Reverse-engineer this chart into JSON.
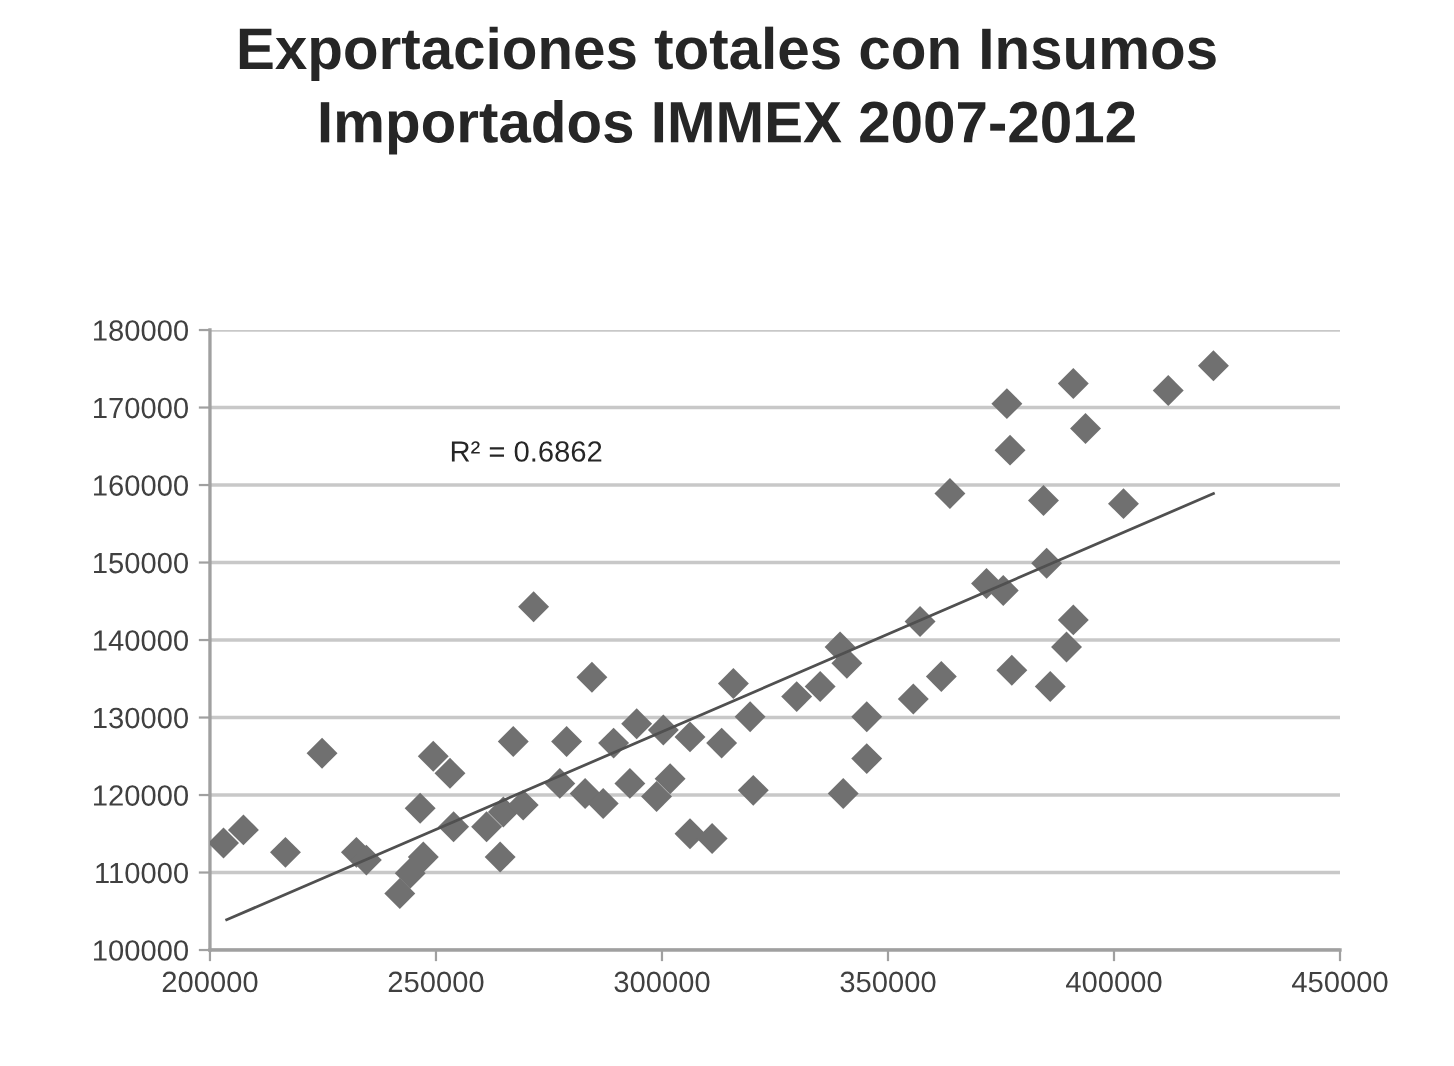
{
  "chart_data": {
    "type": "scatter",
    "title": "Exportaciones totales con Insumos\nImportados IMMEX 2007-2012",
    "annotations": [
      "R² = 0.6862"
    ],
    "marker": "diamond",
    "grid": "y",
    "legend": false,
    "xlim": [
      200000,
      450000
    ],
    "xticks": [
      200000,
      250000,
      300000,
      350000,
      400000,
      450000
    ],
    "ylim": [
      100000,
      180000
    ],
    "yticks": [
      100000,
      110000,
      120000,
      130000,
      140000,
      150000,
      160000,
      170000,
      180000
    ],
    "series": [
      {
        "color": "#707070",
        "x": [
          203000,
          207400,
          216700,
          224800,
          232400,
          234600,
          242000,
          244300,
          247200,
          246500,
          249400,
          253100,
          253900,
          261200,
          264200,
          264900,
          269300,
          267100,
          271600,
          278900,
          277400,
          283000,
          284500,
          287000,
          289300,
          292900,
          294400,
          298800,
          301800,
          300300,
          306200,
          306200,
          311100,
          313200,
          315800,
          319500,
          320200,
          329800,
          335000,
          339400,
          340900,
          340100,
          345300,
          345300,
          357100,
          355600,
          361800,
          363700,
          371800,
          375500,
          376300,
          377000,
          377400,
          384400,
          385100,
          385900,
          389500,
          391000,
          391000,
          393700,
          402100,
          412000,
          422000
        ],
        "values": [
          113800,
          115500,
          112600,
          125400,
          112600,
          111600,
          107300,
          109900,
          112000,
          118300,
          125000,
          122800,
          115900,
          115900,
          112000,
          117800,
          118700,
          126900,
          144300,
          126900,
          121500,
          120200,
          135200,
          118900,
          126700,
          121500,
          129200,
          119800,
          122100,
          128400,
          127500,
          115000,
          114400,
          126700,
          134400,
          130100,
          120600,
          132700,
          134000,
          139100,
          137000,
          120200,
          130100,
          124700,
          142400,
          132400,
          135300,
          158900,
          147300,
          146400,
          170500,
          164500,
          136100,
          158000,
          149900,
          134000,
          139100,
          142600,
          173100,
          167300,
          157600,
          172200,
          175400
        ]
      },
      {
        "type": "line",
        "color": "#505050",
        "marker": "none",
        "x": [
          203700,
          422000
        ],
        "values": [
          103900,
          158900
        ]
      }
    ]
  }
}
